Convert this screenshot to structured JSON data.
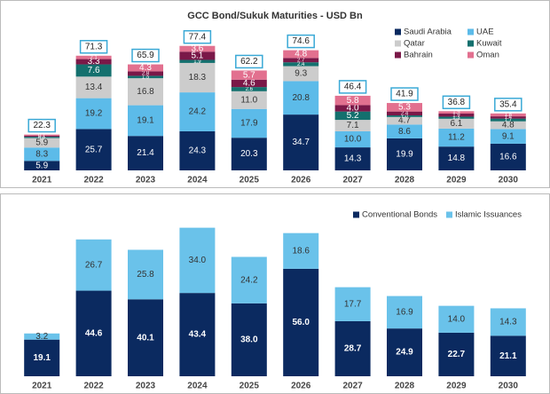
{
  "chart_data": [
    {
      "type": "bar",
      "stacked": true,
      "title": "GCC Bond/Sukuk Maturities - USD Bn",
      "categories": [
        "2021",
        "2022",
        "2023",
        "2024",
        "2025",
        "2026",
        "2027",
        "2028",
        "2029",
        "2030"
      ],
      "ylim": [
        0,
        80
      ],
      "legend": "upper right",
      "series": [
        {
          "name": "Saudi Arabia",
          "color": "#0b2a60",
          "values": [
            5.9,
            25.7,
            21.4,
            24.3,
            20.3,
            34.7,
            14.3,
            19.9,
            14.8,
            16.6
          ],
          "value_labels": [
            "5.9",
            "25.7",
            "21.4",
            "24.3",
            "20.3",
            "34.7",
            "14.3",
            "19.9",
            "14.8",
            "16.6"
          ]
        },
        {
          "name": "UAE",
          "color": "#5cbbe9",
          "values": [
            8.3,
            19.2,
            19.1,
            24.2,
            17.9,
            20.8,
            10,
            8.6,
            11.2,
            9.1
          ],
          "value_labels": [
            "8.3",
            "19.2",
            "19.1",
            "24.2",
            "17.9",
            "20.8",
            "10.0",
            "8.6",
            "11.2",
            "9.1"
          ]
        },
        {
          "name": "Qatar",
          "color": "#cccccc",
          "values": [
            5.9,
            13.4,
            16.8,
            18.3,
            11,
            9.3,
            7.1,
            4.7,
            6.1,
            4.8
          ],
          "value_labels": [
            "5.9",
            "13.4",
            "16.8",
            "18.3",
            "11.0",
            "9.3",
            "7.1",
            "4.7",
            "6.1",
            "4.8"
          ]
        },
        {
          "name": "Kuwait",
          "color": "#14706e",
          "values": [
            0.8,
            7.6,
            1.5,
            1.9,
            2.6,
            2.4,
            5.2,
            1,
            1.3,
            1.7
          ],
          "value_labels": [
            "0.8",
            "7.6",
            "1.5",
            "1.9",
            "2.6",
            "2.4",
            "5.2",
            "1.0",
            "1.3",
            "1.7"
          ]
        },
        {
          "name": "Bahrain",
          "color": "#7a1848",
          "values": [
            0.7,
            3.3,
            2.8,
            5.1,
            4.6,
            2.7,
            4,
            2.4,
            1.9,
            1.4
          ],
          "value_labels": [
            "0.7",
            "3.3",
            "2.8",
            "5.1",
            "4.6",
            "2.7",
            "4.0",
            "2.4",
            "1.9",
            "1.4"
          ]
        },
        {
          "name": "Oman",
          "color": "#e2708f",
          "values": [
            0.7,
            2.1,
            4.3,
            3.6,
            5.7,
            4.8,
            5.8,
            5.3,
            1.5,
            1.8
          ],
          "value_labels": [
            "0.7",
            "2.1",
            "4.3",
            "3.6",
            "5.7",
            "4.8",
            "5.8",
            "5.3",
            "1.5",
            "1.8"
          ]
        }
      ],
      "totals": [
        22.3,
        71.3,
        65.9,
        77.4,
        62.2,
        74.6,
        46.4,
        41.9,
        36.8,
        35.4
      ]
    },
    {
      "type": "bar",
      "stacked": true,
      "categories": [
        "2021",
        "2022",
        "2023",
        "2024",
        "2025",
        "2026",
        "2027",
        "2028",
        "2029",
        "2030"
      ],
      "ylim": [
        0,
        80
      ],
      "legend": "upper right",
      "series": [
        {
          "name": "Conventional Bonds",
          "color": "#0b2a60",
          "values": [
            19.1,
            44.6,
            40.1,
            43.4,
            38,
            56,
            28.7,
            24.9,
            22.7,
            21.1
          ],
          "value_labels": [
            "19.1",
            "44.6",
            "40.1",
            "43.4",
            "38.0",
            "56.0",
            "28.7",
            "24.9",
            "22.7",
            "21.1"
          ]
        },
        {
          "name": "Islamic Issuances",
          "color": "#6ac2ea",
          "values": [
            3.2,
            26.7,
            25.8,
            34,
            24.2,
            18.6,
            17.7,
            16.9,
            14,
            14.3
          ],
          "value_labels": [
            "3.2",
            "26.7",
            "25.8",
            "34.0",
            "24.2",
            "18.6",
            "17.7",
            "16.9",
            "14.0",
            "14.3"
          ]
        }
      ]
    }
  ]
}
